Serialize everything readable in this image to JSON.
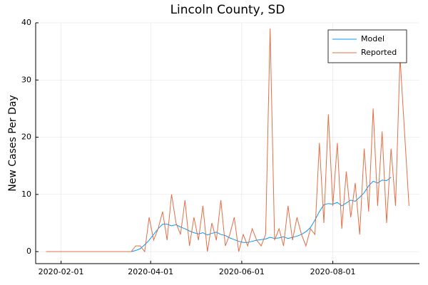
{
  "chart_data": {
    "type": "line",
    "title": "Lincoln County, SD",
    "y_label": "New Cases Per Day",
    "x": [
      "2020-01-22",
      "2020-01-25",
      "2020-01-28",
      "2020-01-31",
      "2020-02-03",
      "2020-02-06",
      "2020-02-09",
      "2020-02-12",
      "2020-02-15",
      "2020-02-18",
      "2020-02-21",
      "2020-02-24",
      "2020-02-27",
      "2020-03-01",
      "2020-03-04",
      "2020-03-07",
      "2020-03-10",
      "2020-03-13",
      "2020-03-16",
      "2020-03-19",
      "2020-03-22",
      "2020-03-25",
      "2020-03-28",
      "2020-03-31",
      "2020-04-03",
      "2020-04-06",
      "2020-04-09",
      "2020-04-12",
      "2020-04-15",
      "2020-04-18",
      "2020-04-21",
      "2020-04-24",
      "2020-04-27",
      "2020-04-30",
      "2020-05-03",
      "2020-05-06",
      "2020-05-09",
      "2020-05-12",
      "2020-05-15",
      "2020-05-18",
      "2020-05-21",
      "2020-05-24",
      "2020-05-27",
      "2020-05-30",
      "2020-06-02",
      "2020-06-05",
      "2020-06-08",
      "2020-06-11",
      "2020-06-14",
      "2020-06-17",
      "2020-06-20",
      "2020-06-23",
      "2020-06-26",
      "2020-06-29",
      "2020-07-02",
      "2020-07-05",
      "2020-07-08",
      "2020-07-11",
      "2020-07-14",
      "2020-07-17",
      "2020-07-20",
      "2020-07-23",
      "2020-07-26",
      "2020-07-29",
      "2020-08-01",
      "2020-08-04",
      "2020-08-07",
      "2020-08-10",
      "2020-08-13",
      "2020-08-16",
      "2020-08-19",
      "2020-08-22",
      "2020-08-25",
      "2020-08-28",
      "2020-08-31",
      "2020-09-03",
      "2020-09-06",
      "2020-09-09",
      "2020-09-12",
      "2020-09-15",
      "2020-09-18",
      "2020-09-21"
    ],
    "series": [
      {
        "name": "Model",
        "color": "#009af9",
        "values": [
          null,
          null,
          null,
          null,
          null,
          null,
          null,
          null,
          null,
          null,
          null,
          null,
          null,
          null,
          null,
          null,
          null,
          null,
          null,
          0,
          0.2,
          0.5,
          1.2,
          2,
          3,
          4,
          4.8,
          4.8,
          4.5,
          4.7,
          4.3,
          4,
          3.6,
          3.3,
          3.1,
          3.3,
          2.9,
          3.2,
          3.4,
          3,
          2.8,
          2.4,
          2.1,
          1.8,
          1.6,
          1.6,
          1.8,
          2,
          2.1,
          2.2,
          2.5,
          2.3,
          2.4,
          2.6,
          2.3,
          2.5,
          2.7,
          3,
          3.5,
          4.2,
          5.5,
          7,
          8.2,
          8.4,
          8.3,
          8.6,
          8,
          8.5,
          9,
          8.8,
          9.5,
          10.3,
          11.5,
          12.3,
          12,
          12.5,
          12.4,
          13,
          null,
          null,
          null,
          null
        ]
      },
      {
        "name": "Reported",
        "color": "#e26f46",
        "values": [
          0,
          0,
          0,
          0,
          0,
          0,
          0,
          0,
          0,
          0,
          0,
          0,
          0,
          0,
          0,
          0,
          0,
          0,
          0,
          0,
          1,
          1,
          0,
          6,
          2,
          4,
          7,
          2,
          10,
          5,
          3,
          9,
          1,
          6,
          2,
          8,
          0,
          5,
          2,
          9,
          1,
          3,
          6,
          0,
          3,
          1,
          4,
          2,
          1,
          3,
          39,
          2,
          4,
          1,
          8,
          2,
          6,
          3,
          1,
          4,
          3,
          19,
          5,
          24,
          8,
          19,
          4,
          14,
          6,
          12,
          3,
          18,
          7,
          25,
          8,
          21,
          5,
          18,
          8,
          34,
          21,
          8
        ]
      }
    ],
    "xlim": [
      "2020-01-15",
      "2020-09-28"
    ],
    "xticks": [
      "2020-02-01",
      "2020-04-01",
      "2020-06-01",
      "2020-08-01"
    ],
    "ylim": [
      -2.1,
      40
    ],
    "yticks": [
      0,
      10,
      20,
      30,
      40
    ],
    "grid": true,
    "legend": "top-right"
  }
}
